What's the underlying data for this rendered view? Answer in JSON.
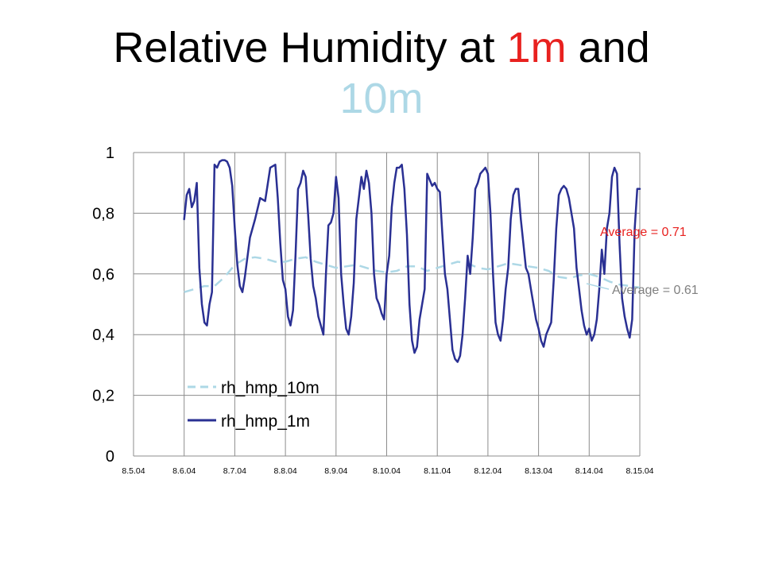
{
  "title": {
    "part1": "Relative Humidity at ",
    "part2": "1m",
    "part3": " and ",
    "part4": "10m",
    "color_1m": "#e8211f",
    "color_10m": "#add8e6"
  },
  "chart_data": {
    "type": "line",
    "xlabel": "",
    "ylabel": "",
    "x_ticks": [
      "8.5.04",
      "8.6.04",
      "8.7.04",
      "8.8.04",
      "8.9.04",
      "8.10.04",
      "8.11.04",
      "8.12.04",
      "8.13.04",
      "8.14.04",
      "8.15.04"
    ],
    "y_ticks": [
      "0",
      "0,2",
      "0,4",
      "0,6",
      "0,8",
      "1"
    ],
    "ylim": [
      0,
      1
    ],
    "xlim_days": [
      0,
      10
    ],
    "grid": "vertical and horizontal",
    "legend_position": "lower-left inside",
    "series": [
      {
        "name": "rh_hmp_10m",
        "color": "#add8e6",
        "style": "dashed",
        "x": [
          1.0,
          1.2,
          1.4,
          1.6,
          1.8,
          2.0,
          2.2,
          2.4,
          2.6,
          2.8,
          3.0,
          3.2,
          3.4,
          3.6,
          3.8,
          4.0,
          4.2,
          4.4,
          4.6,
          4.8,
          5.0,
          5.2,
          5.4,
          5.6,
          5.8,
          6.0,
          6.2,
          6.4,
          6.6,
          6.8,
          7.0,
          7.2,
          7.4,
          7.6,
          7.8,
          8.0,
          8.2,
          8.4,
          8.6,
          8.8,
          9.0,
          9.2,
          9.4,
          9.6,
          9.8,
          10.0
        ],
        "values": [
          0.54,
          0.55,
          0.56,
          0.56,
          0.59,
          0.63,
          0.65,
          0.655,
          0.65,
          0.64,
          0.64,
          0.65,
          0.655,
          0.64,
          0.63,
          0.62,
          0.625,
          0.63,
          0.62,
          0.61,
          0.605,
          0.61,
          0.625,
          0.625,
          0.61,
          0.62,
          0.63,
          0.64,
          0.635,
          0.62,
          0.615,
          0.625,
          0.635,
          0.63,
          0.625,
          0.62,
          0.61,
          0.59,
          0.585,
          0.595,
          0.6,
          0.59,
          0.575,
          0.565,
          0.56,
          0.555
        ]
      },
      {
        "name": "rh_hmp_1m",
        "color": "#2a3093",
        "style": "solid",
        "x": [
          1.0,
          1.05,
          1.1,
          1.15,
          1.2,
          1.25,
          1.3,
          1.35,
          1.4,
          1.45,
          1.5,
          1.55,
          1.6,
          1.65,
          1.7,
          1.75,
          1.8,
          1.85,
          1.9,
          1.95,
          2.0,
          2.05,
          2.1,
          2.15,
          2.2,
          2.3,
          2.4,
          2.5,
          2.6,
          2.7,
          2.8,
          2.85,
          2.9,
          2.95,
          3.0,
          3.05,
          3.1,
          3.15,
          3.2,
          3.25,
          3.3,
          3.35,
          3.4,
          3.45,
          3.5,
          3.55,
          3.6,
          3.65,
          3.7,
          3.75,
          3.8,
          3.85,
          3.9,
          3.95,
          4.0,
          4.05,
          4.1,
          4.15,
          4.2,
          4.25,
          4.3,
          4.35,
          4.4,
          4.45,
          4.5,
          4.55,
          4.6,
          4.65,
          4.7,
          4.75,
          4.8,
          4.85,
          4.9,
          4.95,
          5.0,
          5.05,
          5.1,
          5.15,
          5.2,
          5.25,
          5.3,
          5.35,
          5.4,
          5.45,
          5.5,
          5.55,
          5.6,
          5.65,
          5.7,
          5.75,
          5.8,
          5.85,
          5.9,
          5.95,
          6.0,
          6.05,
          6.1,
          6.15,
          6.2,
          6.25,
          6.3,
          6.35,
          6.4,
          6.45,
          6.5,
          6.55,
          6.6,
          6.65,
          6.7,
          6.75,
          6.8,
          6.85,
          6.9,
          6.95,
          7.0,
          7.05,
          7.1,
          7.15,
          7.2,
          7.25,
          7.3,
          7.35,
          7.4,
          7.45,
          7.5,
          7.55,
          7.6,
          7.65,
          7.7,
          7.75,
          7.8,
          7.85,
          7.9,
          7.95,
          8.0,
          8.05,
          8.1,
          8.15,
          8.2,
          8.25,
          8.3,
          8.35,
          8.4,
          8.45,
          8.5,
          8.55,
          8.6,
          8.65,
          8.7,
          8.75,
          8.8,
          8.85,
          8.9,
          8.95,
          9.0,
          9.05,
          9.1,
          9.15,
          9.2,
          9.25,
          9.3,
          9.35,
          9.4,
          9.45,
          9.5,
          9.55,
          9.6,
          9.65,
          9.7,
          9.75,
          9.8,
          9.85,
          9.9,
          9.95,
          10.0
        ],
        "values": [
          0.78,
          0.86,
          0.88,
          0.82,
          0.84,
          0.9,
          0.62,
          0.5,
          0.44,
          0.43,
          0.5,
          0.54,
          0.96,
          0.95,
          0.97,
          0.975,
          0.975,
          0.97,
          0.95,
          0.89,
          0.75,
          0.63,
          0.56,
          0.54,
          0.59,
          0.72,
          0.78,
          0.85,
          0.84,
          0.95,
          0.96,
          0.85,
          0.7,
          0.58,
          0.55,
          0.46,
          0.43,
          0.48,
          0.66,
          0.88,
          0.9,
          0.94,
          0.92,
          0.79,
          0.65,
          0.56,
          0.52,
          0.46,
          0.43,
          0.4,
          0.6,
          0.76,
          0.77,
          0.8,
          0.92,
          0.85,
          0.6,
          0.5,
          0.42,
          0.4,
          0.46,
          0.57,
          0.78,
          0.85,
          0.92,
          0.88,
          0.94,
          0.9,
          0.8,
          0.6,
          0.52,
          0.5,
          0.47,
          0.45,
          0.6,
          0.66,
          0.82,
          0.9,
          0.95,
          0.95,
          0.96,
          0.88,
          0.73,
          0.5,
          0.38,
          0.34,
          0.36,
          0.45,
          0.5,
          0.55,
          0.93,
          0.91,
          0.89,
          0.9,
          0.88,
          0.87,
          0.73,
          0.6,
          0.55,
          0.45,
          0.35,
          0.32,
          0.31,
          0.33,
          0.4,
          0.52,
          0.66,
          0.6,
          0.72,
          0.88,
          0.9,
          0.93,
          0.94,
          0.95,
          0.93,
          0.8,
          0.6,
          0.44,
          0.4,
          0.38,
          0.45,
          0.55,
          0.62,
          0.78,
          0.86,
          0.88,
          0.88,
          0.78,
          0.7,
          0.62,
          0.6,
          0.55,
          0.5,
          0.45,
          0.42,
          0.38,
          0.36,
          0.4,
          0.42,
          0.44,
          0.58,
          0.75,
          0.86,
          0.88,
          0.89,
          0.88,
          0.85,
          0.8,
          0.75,
          0.62,
          0.55,
          0.48,
          0.43,
          0.4,
          0.42,
          0.38,
          0.4,
          0.45,
          0.55,
          0.68,
          0.6,
          0.75,
          0.8,
          0.92,
          0.95,
          0.93,
          0.7,
          0.52,
          0.46,
          0.42,
          0.39,
          0.45,
          0.75,
          0.88,
          0.88
        ]
      }
    ],
    "annotations": [
      {
        "text": "Average = 0.71",
        "color": "#e8211f"
      },
      {
        "text": "Average = 0.61",
        "color": "#808080"
      }
    ]
  }
}
